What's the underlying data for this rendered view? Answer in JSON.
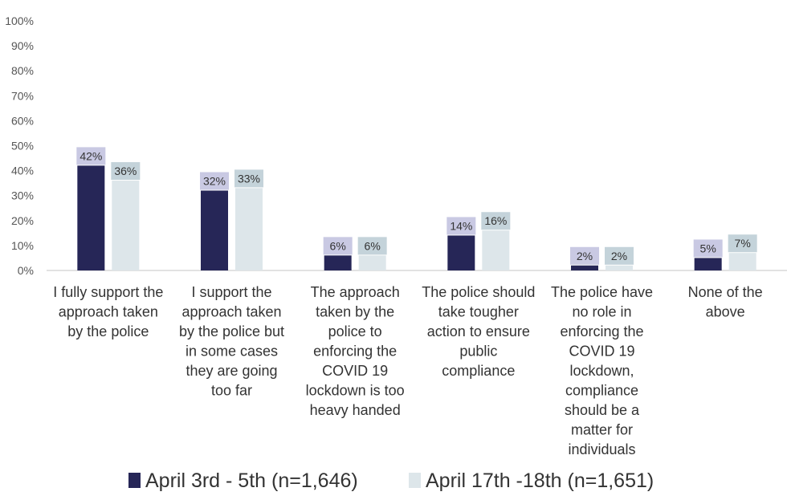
{
  "chart_data": {
    "type": "bar",
    "title": "",
    "xlabel": "",
    "ylabel": "",
    "ylim": [
      0,
      100
    ],
    "yticks": [
      "0%",
      "10%",
      "20%",
      "30%",
      "40%",
      "50%",
      "60%",
      "70%",
      "80%",
      "90%",
      "100%"
    ],
    "categories": [
      [
        "I fully support the",
        "approach taken",
        "by the police"
      ],
      [
        "I support the",
        "approach taken",
        "by the police but",
        "in some cases",
        "they are going",
        "too far"
      ],
      [
        "The approach",
        "taken by the",
        "police to",
        "enforcing the",
        "COVID 19",
        "lockdown is too",
        "heavy handed"
      ],
      [
        "The police should",
        "take tougher",
        "action to ensure",
        "public",
        "compliance"
      ],
      [
        "The police have",
        "no role in",
        "enforcing the",
        "COVID 19",
        "lockdown,",
        "compliance",
        "should be a",
        "matter for",
        "individuals"
      ],
      [
        "None of the",
        "above"
      ]
    ],
    "series": [
      {
        "name": "April 3rd - 5th (n=1,646)",
        "color": "#262657",
        "label_bg": "#c9c9e3",
        "values": [
          42,
          32,
          6,
          14,
          2,
          5
        ],
        "labels": [
          "42%",
          "32%",
          "6%",
          "14%",
          "2%",
          "5%"
        ]
      },
      {
        "name": "April 17th -18th (n=1,651)",
        "color": "#dde6ea",
        "label_bg": "#c4d3da",
        "values": [
          36,
          33,
          6,
          16,
          2,
          7
        ],
        "labels": [
          "36%",
          "33%",
          "6%",
          "16%",
          "2%",
          "7%"
        ]
      }
    ],
    "grid": false,
    "legend": "bottom"
  }
}
